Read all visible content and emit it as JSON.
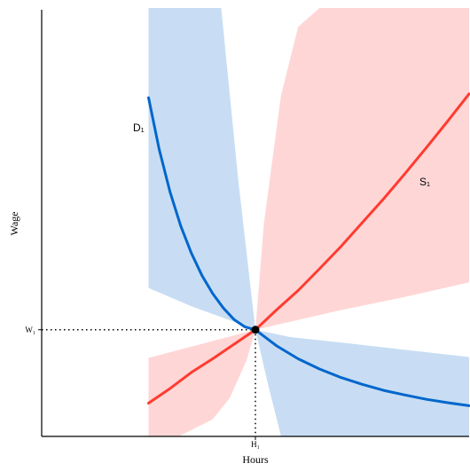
{
  "chart_data": {
    "type": "line",
    "title": "",
    "xlabel": "Hours",
    "ylabel": "Wage",
    "xlim": [
      0,
      10
    ],
    "ylim": [
      0,
      10
    ],
    "grid": false,
    "equilibrium": {
      "x": 5,
      "y": 2.5,
      "x_tick_label": "H₁",
      "y_tick_label": "W₁"
    },
    "series": [
      {
        "name": "D₁",
        "color": "#0066cc",
        "x": [
          2.5,
          2.75,
          3.0,
          3.25,
          3.5,
          3.75,
          4.0,
          4.25,
          4.5,
          4.75,
          5.0,
          5.5,
          6.0,
          6.5,
          7.0,
          7.5,
          8.0,
          8.5,
          9.0,
          9.5,
          10.0
        ],
        "y": [
          7.94,
          6.72,
          5.74,
          4.94,
          4.3,
          3.77,
          3.35,
          3.01,
          2.74,
          2.57,
          2.5,
          2.12,
          1.82,
          1.58,
          1.38,
          1.22,
          1.08,
          0.97,
          0.87,
          0.79,
          0.72
        ]
      },
      {
        "name": "S₁",
        "color": "#ff3b30",
        "x": [
          2.5,
          3.0,
          3.5,
          4.0,
          4.5,
          5.0,
          5.5,
          6.0,
          6.5,
          7.0,
          7.5,
          8.0,
          8.5,
          9.0,
          9.5,
          10.0
        ],
        "y": [
          0.78,
          1.12,
          1.5,
          1.82,
          2.16,
          2.5,
          2.97,
          3.42,
          3.93,
          4.45,
          5.01,
          5.57,
          6.16,
          6.77,
          7.39,
          8.03
        ]
      }
    ],
    "bands": [
      {
        "name": "demand-band",
        "color": "#c8ddf3",
        "upper": {
          "x": [
            2.5,
            4.2,
            4.6,
            5.0,
            5.8,
            7.0,
            8.5,
            10.0
          ],
          "y": [
            10.2,
            10.2,
            6.0,
            2.5,
            2.33,
            2.2,
            2.03,
            1.86
          ]
        },
        "lower": {
          "x": [
            2.5,
            3.5,
            4.3,
            4.75,
            5.0,
            5.3,
            5.6,
            10.0
          ],
          "y": [
            3.48,
            3.05,
            2.76,
            2.6,
            2.5,
            1.2,
            0.0,
            0.0
          ]
        }
      },
      {
        "name": "supply-band",
        "color": "#ffd6d6",
        "upper": {
          "x": [
            2.5,
            5.0,
            5.2,
            5.6,
            6.0,
            6.5,
            10.0
          ],
          "y": [
            1.84,
            2.5,
            5.0,
            8.0,
            9.6,
            10.2,
            10.2
          ]
        },
        "lower": {
          "x": [
            2.5,
            3.2,
            4.0,
            4.4,
            4.8,
            5.0,
            7.0,
            8.5,
            10.0
          ],
          "y": [
            0.0,
            0.0,
            0.4,
            0.9,
            1.8,
            2.5,
            2.96,
            3.27,
            3.61
          ]
        }
      }
    ]
  }
}
